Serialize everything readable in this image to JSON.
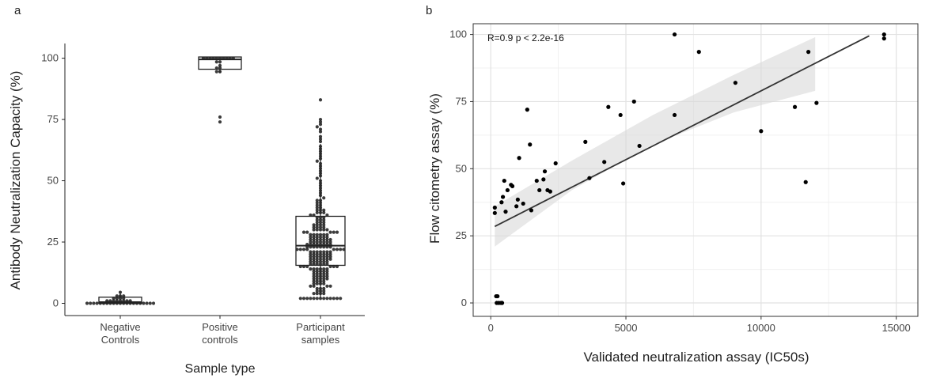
{
  "chart_data": [
    {
      "type": "box",
      "panel_label": "a",
      "xlabel": "Sample type",
      "ylabel": "Antibody Neutralization Capacity (%)",
      "ylim": [
        -5,
        106
      ],
      "yticks": [
        0,
        25,
        50,
        75,
        100
      ],
      "categories": [
        {
          "lines": [
            "Negative",
            "Controls"
          ]
        },
        {
          "lines": [
            "Positive",
            "controls"
          ]
        },
        {
          "lines": [
            "Participant",
            "samples"
          ]
        }
      ],
      "boxes": [
        {
          "q1": 0,
          "median": 0.5,
          "q3": 2.5,
          "whisker_low": 0,
          "whisker_high": 4.5
        },
        {
          "q1": 95.5,
          "median": 99.5,
          "q3": 100.5,
          "whisker_low": 94,
          "whisker_high": 100.5
        },
        {
          "q1": 15.5,
          "median": 23.5,
          "q3": 35.5,
          "whisker_low": 2,
          "whisker_high": 65
        }
      ],
      "points": [
        [
          0,
          0,
          0,
          0,
          0,
          0,
          0,
          0,
          0,
          0,
          0,
          0,
          0,
          0,
          0,
          0,
          0,
          0,
          0,
          0,
          0,
          1,
          1,
          1,
          1,
          1,
          1,
          1,
          1,
          2,
          2,
          2,
          2,
          3,
          3,
          3,
          4.5
        ],
        [
          100,
          100,
          100,
          100,
          100,
          100,
          100,
          100,
          100,
          100,
          98.5,
          98.5,
          97,
          96,
          96,
          94.5,
          94.5,
          76,
          74
        ],
        [
          2,
          2,
          2,
          2,
          2,
          2,
          2,
          2,
          2,
          2,
          2,
          2,
          2,
          4,
          4,
          4,
          4,
          5,
          5,
          5,
          6,
          6,
          6,
          7,
          7,
          7,
          7,
          8,
          8,
          8,
          8,
          9,
          9,
          9,
          9,
          10,
          10,
          10,
          10,
          10,
          11,
          11,
          11,
          11,
          11,
          12,
          12,
          12,
          12,
          12,
          13,
          13,
          13,
          13,
          13,
          14,
          14,
          14,
          14,
          14,
          14,
          15,
          15,
          15,
          15,
          15,
          15,
          16,
          16,
          16,
          16,
          16,
          16,
          17,
          17,
          17,
          17,
          17,
          17,
          18,
          18,
          18,
          18,
          18,
          18,
          18,
          19,
          19,
          19,
          19,
          19,
          19,
          19,
          20,
          20,
          20,
          20,
          20,
          20,
          20,
          21,
          21,
          21,
          21,
          21,
          21,
          21,
          22,
          22,
          22,
          22,
          22,
          22,
          22,
          22,
          23,
          23,
          23,
          23,
          23,
          23,
          23,
          23,
          24,
          24,
          24,
          24,
          24,
          24,
          24,
          24,
          25,
          25,
          25,
          25,
          25,
          25,
          25,
          26,
          26,
          26,
          26,
          26,
          26,
          26,
          27,
          27,
          27,
          27,
          27,
          27,
          28,
          28,
          28,
          28,
          28,
          28,
          29,
          29,
          29,
          29,
          29,
          30,
          30,
          30,
          30,
          30,
          31,
          31,
          31,
          31,
          32,
          32,
          32,
          32,
          33,
          33,
          33,
          34,
          34,
          34,
          35,
          35,
          35,
          36,
          36,
          36,
          37,
          37,
          37,
          38,
          38,
          38,
          39,
          39,
          40,
          40,
          41,
          41,
          42,
          42,
          43,
          44,
          45,
          46,
          47,
          48,
          49,
          50,
          51,
          52,
          53,
          54,
          55,
          56,
          57,
          58,
          59,
          60,
          61,
          62,
          63,
          64,
          66,
          67,
          68,
          70,
          71,
          72,
          73,
          74,
          75,
          83
        ]
      ]
    },
    {
      "type": "scatter",
      "panel_label": "b",
      "xlabel": "Validated neutralization assay (IC50s)",
      "ylabel": "Flow citometry assay (%)",
      "annotation": "R=0.9 p < 2.2e-16",
      "xlim": [
        -650,
        15800
      ],
      "ylim": [
        -5,
        104
      ],
      "xticks": [
        0,
        5000,
        10000,
        15000
      ],
      "yticks": [
        0,
        25,
        50,
        75,
        100
      ],
      "grid": true,
      "regression": {
        "x0": 150,
        "y0": 28.5,
        "x1": 14000,
        "y1": 99.5
      },
      "confidence_band": {
        "upper": [
          [
            150,
            36
          ],
          [
            3000,
            53
          ],
          [
            6000,
            70
          ],
          [
            9000,
            85
          ],
          [
            12000,
            99
          ]
        ],
        "lower": [
          [
            150,
            21
          ],
          [
            3000,
            42
          ],
          [
            6000,
            59
          ],
          [
            9000,
            71
          ],
          [
            12000,
            79
          ]
        ]
      },
      "points": [
        [
          150,
          35.5
        ],
        [
          150,
          33.5
        ],
        [
          200,
          2.5
        ],
        [
          250,
          2.5
        ],
        [
          220,
          0
        ],
        [
          300,
          0
        ],
        [
          380,
          0
        ],
        [
          420,
          0
        ],
        [
          400,
          37.5
        ],
        [
          450,
          39.5
        ],
        [
          500,
          45.5
        ],
        [
          550,
          34
        ],
        [
          620,
          42
        ],
        [
          750,
          44
        ],
        [
          800,
          43.5
        ],
        [
          950,
          36
        ],
        [
          1000,
          38.5
        ],
        [
          1050,
          54
        ],
        [
          1200,
          37
        ],
        [
          1350,
          72
        ],
        [
          1450,
          59
        ],
        [
          1500,
          34.5
        ],
        [
          1700,
          45.5
        ],
        [
          1800,
          42
        ],
        [
          1950,
          46
        ],
        [
          2000,
          49
        ],
        [
          2100,
          42
        ],
        [
          2200,
          41.5
        ],
        [
          2400,
          52
        ],
        [
          3500,
          60
        ],
        [
          3650,
          46.5
        ],
        [
          4200,
          52.5
        ],
        [
          4350,
          73
        ],
        [
          4800,
          70
        ],
        [
          4900,
          44.5
        ],
        [
          5300,
          75
        ],
        [
          5500,
          58.5
        ],
        [
          6800,
          70
        ],
        [
          6800,
          100
        ],
        [
          7700,
          93.5
        ],
        [
          9050,
          82
        ],
        [
          10000,
          64
        ],
        [
          11250,
          73
        ],
        [
          11650,
          45
        ],
        [
          11750,
          93.5
        ],
        [
          12050,
          74.5
        ],
        [
          14550,
          100
        ],
        [
          14550,
          98.5
        ]
      ]
    }
  ]
}
